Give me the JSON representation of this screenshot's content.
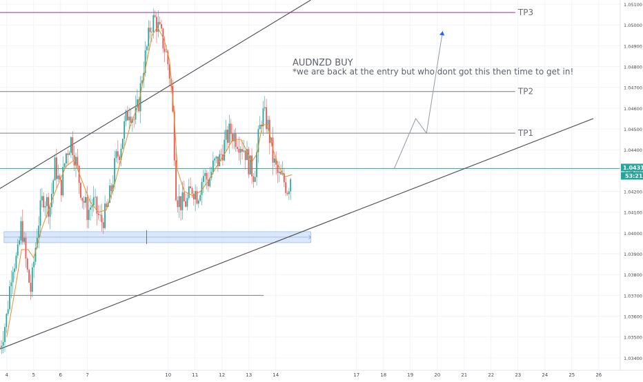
{
  "chart_data": {
    "type": "candlestick",
    "symbol": "AUDNZD",
    "annotation_title": "AUDNZD BUY",
    "annotation_text": "*we are back at the entry but who dont got this then time to get in!",
    "current_price": "1.04313",
    "countdown": "53:21",
    "ylim": [
      1.0334,
      1.0512
    ],
    "y_ticks": [
      1.051,
      1.05,
      1.049,
      1.048,
      1.047,
      1.046,
      1.045,
      1.044,
      1.043,
      1.042,
      1.041,
      1.04,
      1.039,
      1.038,
      1.037,
      1.036,
      1.035,
      1.034
    ],
    "y_tick_labels": [
      "1.05100",
      "1.05000",
      "1.04900",
      "1.04800",
      "1.04700",
      "1.04600",
      "1.04500",
      "1.04400",
      "1.04300",
      "1.04200",
      "1.04100",
      "1.04000",
      "1.03900",
      "1.03800",
      "1.03700",
      "1.03600",
      "1.03500",
      "1.03400"
    ],
    "xlim": [
      3.75,
      26.8
    ],
    "x_ticks": [
      4,
      5,
      6,
      7,
      10,
      11,
      12,
      13,
      14,
      17,
      18,
      19,
      20,
      21,
      22,
      23,
      24,
      25,
      26
    ],
    "x_tick_labels": [
      "4",
      "5",
      "6",
      "7",
      "10",
      "11",
      "12",
      "13",
      "14",
      "17",
      "18",
      "19",
      "20",
      "21",
      "22",
      "23",
      "24",
      "25",
      "26"
    ],
    "levels": [
      {
        "label": "TP3",
        "price": 1.0506,
        "color": "#9c27b0"
      },
      {
        "label": "TP2",
        "price": 1.0468,
        "color": "#787b86"
      },
      {
        "label": "TP1",
        "price": 1.0448,
        "color": "#787b86"
      },
      {
        "label": "",
        "price": 1.0431,
        "color": "#26a69a"
      },
      {
        "label": "",
        "price": 1.037,
        "color": "#787b86"
      }
    ],
    "support_zone": {
      "from": 1.0397,
      "to": 1.0399
    },
    "projection": [
      [
        18.4,
        1.0431
      ],
      [
        19.2,
        1.0455
      ],
      [
        19.6,
        1.0448
      ],
      [
        20.2,
        1.0497
      ]
    ],
    "trendlines": [
      [
        [
          3.7,
          1.0421
        ],
        [
          15.3,
          1.0512
        ]
      ],
      [
        [
          3.7,
          1.0344
        ],
        [
          25.8,
          1.0455
        ]
      ]
    ],
    "candles_path": [
      [
        3.75,
        1.0345
      ],
      [
        4.0,
        1.036
      ],
      [
        4.2,
        1.0385
      ],
      [
        4.4,
        1.0388
      ],
      [
        4.55,
        1.0405
      ],
      [
        4.75,
        1.0382
      ],
      [
        4.9,
        1.0372
      ],
      [
        5.0,
        1.0385
      ],
      [
        5.15,
        1.0403
      ],
      [
        5.35,
        1.0418
      ],
      [
        5.6,
        1.0412
      ],
      [
        5.8,
        1.0433
      ],
      [
        6.0,
        1.042
      ],
      [
        6.2,
        1.0438
      ],
      [
        6.4,
        1.0445
      ],
      [
        6.6,
        1.0432
      ],
      [
        6.8,
        1.0418
      ],
      [
        7.0,
        1.041
      ],
      [
        7.2,
        1.0415
      ],
      [
        7.5,
        1.0405
      ],
      [
        7.7,
        1.041
      ],
      [
        7.9,
        1.0422
      ],
      [
        8.05,
        1.0435
      ],
      [
        8.2,
        1.044
      ],
      [
        8.4,
        1.0453
      ],
      [
        8.55,
        1.046
      ],
      [
        8.75,
        1.0454
      ],
      [
        8.9,
        1.0462
      ],
      [
        9.05,
        1.0478
      ],
      [
        9.2,
        1.0488
      ],
      [
        9.35,
        1.05
      ],
      [
        9.5,
        1.0503
      ],
      [
        9.65,
        1.0498
      ],
      [
        9.8,
        1.0492
      ],
      [
        9.95,
        1.0485
      ],
      [
        10.1,
        1.0472
      ],
      [
        10.2,
        1.045
      ],
      [
        10.3,
        1.0418
      ],
      [
        10.5,
        1.0414
      ],
      [
        10.7,
        1.0415
      ],
      [
        10.9,
        1.0422
      ],
      [
        11.1,
        1.0418
      ],
      [
        11.3,
        1.0428
      ],
      [
        11.5,
        1.0425
      ],
      [
        11.7,
        1.0433
      ],
      [
        11.9,
        1.0435
      ],
      [
        12.1,
        1.0443
      ],
      [
        12.3,
        1.0449
      ],
      [
        12.5,
        1.0446
      ],
      [
        12.7,
        1.0443
      ],
      [
        12.85,
        1.044
      ],
      [
        13.0,
        1.0433
      ],
      [
        13.2,
        1.0428
      ],
      [
        13.35,
        1.0445
      ],
      [
        13.5,
        1.0458
      ],
      [
        13.7,
        1.0452
      ],
      [
        13.9,
        1.0435
      ],
      [
        14.1,
        1.0427
      ],
      [
        14.3,
        1.0425
      ],
      [
        14.45,
        1.0421
      ],
      [
        14.6,
        1.0431
      ]
    ],
    "ma_path": [
      [
        4.0,
        1.035
      ],
      [
        4.3,
        1.0372
      ],
      [
        4.55,
        1.0392
      ],
      [
        4.8,
        1.0392
      ],
      [
        5.0,
        1.0388
      ],
      [
        5.3,
        1.0402
      ],
      [
        5.6,
        1.0413
      ],
      [
        5.9,
        1.0423
      ],
      [
        6.2,
        1.0432
      ],
      [
        6.5,
        1.0435
      ],
      [
        6.8,
        1.0425
      ],
      [
        7.1,
        1.0415
      ],
      [
        7.4,
        1.041
      ],
      [
        7.7,
        1.0411
      ],
      [
        8.0,
        1.0423
      ],
      [
        8.3,
        1.0438
      ],
      [
        8.6,
        1.0452
      ],
      [
        8.9,
        1.0462
      ],
      [
        9.2,
        1.0482
      ],
      [
        9.4,
        1.0495
      ],
      [
        9.6,
        1.0499
      ],
      [
        9.85,
        1.0493
      ],
      [
        10.05,
        1.0483
      ],
      [
        10.2,
        1.046
      ],
      [
        10.35,
        1.043
      ],
      [
        10.6,
        1.042
      ],
      [
        10.9,
        1.0418
      ],
      [
        11.2,
        1.042
      ],
      [
        11.5,
        1.0425
      ],
      [
        11.8,
        1.0432
      ],
      [
        12.1,
        1.0438
      ],
      [
        12.4,
        1.0445
      ],
      [
        12.7,
        1.0445
      ],
      [
        12.9,
        1.044
      ],
      [
        13.1,
        1.0434
      ],
      [
        13.3,
        1.0438
      ],
      [
        13.5,
        1.0452
      ],
      [
        13.7,
        1.0452
      ],
      [
        13.9,
        1.044
      ],
      [
        14.1,
        1.0432
      ],
      [
        14.35,
        1.0427
      ],
      [
        14.6,
        1.0428
      ]
    ]
  }
}
